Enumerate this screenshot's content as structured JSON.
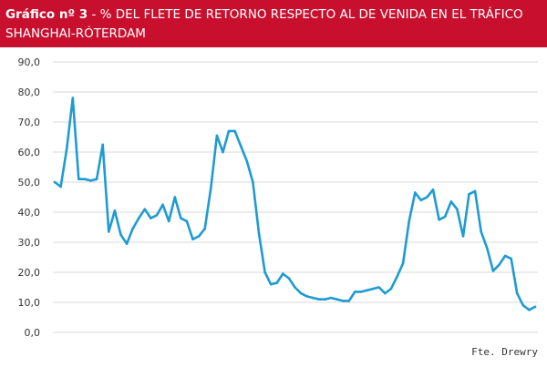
{
  "title": {
    "bold": "Gráfico nº 3",
    "rest": " - % DEL FLETE DE RETORNO RESPECTO AL DE VENIDA EN EL TRÁFICO",
    "line2": "SHANGHAI-RÓTERDAM"
  },
  "source": "Fte. Drewry",
  "colors": {
    "title_bg": "#c8102e",
    "line": "#1f9bd1",
    "grid": "#d9d9d9"
  },
  "chart_data": {
    "type": "line",
    "title": "% DEL FLETE DE RETORNO RESPECTO AL DE VENIDA EN EL TRÁFICO SHANGHAI-RÓTERDAM",
    "xlabel": "",
    "ylabel": "",
    "ylim": [
      0,
      90
    ],
    "yticks": [
      "0,0",
      "10,0",
      "20,0",
      "30,0",
      "40,0",
      "50,0",
      "60,0",
      "70,0",
      "80,0",
      "90,0"
    ],
    "grid": true,
    "legend": "none",
    "series": [
      {
        "values": [
          50.0,
          48.5,
          61.0,
          78.0,
          51.0,
          51.0,
          50.5,
          51.0,
          62.5,
          33.5,
          40.5,
          32.5,
          29.5,
          34.5,
          38.0,
          41.0,
          38.0,
          39.0,
          42.5,
          37.0,
          45.0,
          38.0,
          37.0,
          31.0,
          32.0,
          34.5,
          48.0,
          65.5,
          60.0,
          67.0,
          67.0,
          62.0,
          57.0,
          50.0,
          33.0,
          20.0,
          16.0,
          16.5,
          19.5,
          18.0,
          15.0,
          13.0,
          12.0,
          11.5,
          11.0,
          11.0,
          11.5,
          11.0,
          10.5,
          10.5,
          13.5,
          13.5,
          14.0,
          14.5,
          15.0,
          13.0,
          14.5,
          18.5,
          23.0,
          37.0,
          46.5,
          44.0,
          45.0,
          47.5,
          37.5,
          38.5,
          43.5,
          41.0,
          32.0,
          46.0,
          47.0,
          33.5,
          28.0,
          20.5,
          22.5,
          25.5,
          24.5,
          13.0,
          9.0,
          7.5,
          8.5
        ]
      }
    ]
  }
}
